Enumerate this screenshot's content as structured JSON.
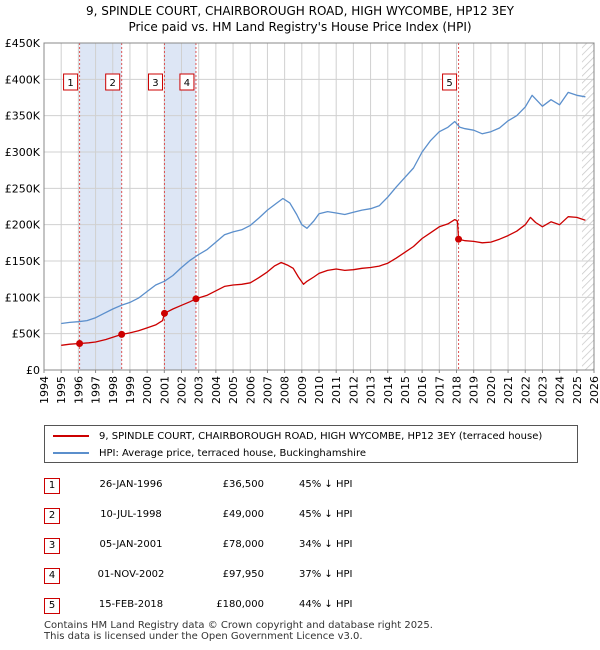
{
  "title_line1": "9, SPINDLE COURT, CHAIRBOROUGH ROAD, HIGH WYCOMBE, HP12 3EY",
  "title_line2": "Price paid vs. HM Land Registry's House Price Index (HPI)",
  "colors": {
    "price_line": "#cc0000",
    "hpi_line": "#5b8fcc",
    "shade": "#dde6f5",
    "grid": "#d0d0d0",
    "vline": "#dd5555"
  },
  "chart_data": {
    "type": "line",
    "title": "9, SPINDLE COURT, CHAIRBOROUGH ROAD, HIGH WYCOMBE, HP12 3EY — Price paid vs. HM Land Registry's House Price Index (HPI)",
    "xlabel": "",
    "ylabel": "",
    "xlim": [
      1994.0,
      2026.0
    ],
    "ylim": [
      0,
      450000
    ],
    "x_ticks": [
      "1994",
      "1995",
      "1996",
      "1997",
      "1998",
      "1999",
      "2000",
      "2001",
      "2002",
      "2003",
      "2004",
      "2005",
      "2006",
      "2007",
      "2008",
      "2009",
      "2010",
      "2011",
      "2012",
      "2013",
      "2014",
      "2015",
      "2016",
      "2017",
      "2018",
      "2019",
      "2020",
      "2021",
      "2022",
      "2023",
      "2024",
      "2025",
      "2026"
    ],
    "y_ticks": [
      {
        "value": 0,
        "label": "£0"
      },
      {
        "value": 50000,
        "label": "£50K"
      },
      {
        "value": 100000,
        "label": "£100K"
      },
      {
        "value": 150000,
        "label": "£150K"
      },
      {
        "value": 200000,
        "label": "£200K"
      },
      {
        "value": 250000,
        "label": "£250K"
      },
      {
        "value": 300000,
        "label": "£300K"
      },
      {
        "value": 350000,
        "label": "£350K"
      },
      {
        "value": 400000,
        "label": "£400K"
      },
      {
        "value": 450000,
        "label": "£450K"
      }
    ],
    "shaded_ranges": [
      [
        1996.07,
        1998.52
      ],
      [
        2001.01,
        2002.84
      ]
    ],
    "future_hatch_from": 2025.3,
    "series": [
      {
        "name": "9, SPINDLE COURT, CHAIRBOROUGH ROAD, HIGH WYCOMBE, HP12 3EY (terraced house)",
        "key": "price",
        "points": [
          [
            1995.0,
            34000
          ],
          [
            1995.5,
            35500
          ],
          [
            1996.07,
            36500
          ],
          [
            1996.6,
            37500
          ],
          [
            1997.0,
            38500
          ],
          [
            1997.6,
            42000
          ],
          [
            1998.0,
            45000
          ],
          [
            1998.52,
            49000
          ],
          [
            1999.0,
            51000
          ],
          [
            1999.5,
            54000
          ],
          [
            2000.0,
            58000
          ],
          [
            2000.5,
            62000
          ],
          [
            2000.9,
            68000
          ],
          [
            2001.01,
            78000
          ],
          [
            2001.5,
            84000
          ],
          [
            2002.0,
            89000
          ],
          [
            2002.5,
            94000
          ],
          [
            2002.84,
            97950
          ],
          [
            2003.5,
            103000
          ],
          [
            2004.0,
            109000
          ],
          [
            2004.5,
            115000
          ],
          [
            2005.0,
            117000
          ],
          [
            2005.5,
            118000
          ],
          [
            2006.0,
            120000
          ],
          [
            2006.5,
            127000
          ],
          [
            2007.0,
            135000
          ],
          [
            2007.4,
            143000
          ],
          [
            2007.8,
            148000
          ],
          [
            2008.2,
            144000
          ],
          [
            2008.5,
            140000
          ],
          [
            2008.8,
            128000
          ],
          [
            2009.1,
            118000
          ],
          [
            2009.3,
            122000
          ],
          [
            2009.7,
            128000
          ],
          [
            2010.0,
            133000
          ],
          [
            2010.5,
            137000
          ],
          [
            2011.0,
            139000
          ],
          [
            2011.5,
            137000
          ],
          [
            2012.0,
            138000
          ],
          [
            2012.5,
            140000
          ],
          [
            2013.0,
            141000
          ],
          [
            2013.5,
            143000
          ],
          [
            2014.0,
            147000
          ],
          [
            2014.5,
            154000
          ],
          [
            2015.0,
            162000
          ],
          [
            2015.5,
            170000
          ],
          [
            2016.0,
            181000
          ],
          [
            2016.5,
            189000
          ],
          [
            2017.0,
            197000
          ],
          [
            2017.5,
            201000
          ],
          [
            2017.9,
            207000
          ],
          [
            2018.05,
            205000
          ],
          [
            2018.12,
            180000
          ],
          [
            2018.5,
            178000
          ],
          [
            2019.0,
            177000
          ],
          [
            2019.5,
            175000
          ],
          [
            2020.0,
            176000
          ],
          [
            2020.5,
            180000
          ],
          [
            2021.0,
            185000
          ],
          [
            2021.5,
            191000
          ],
          [
            2022.0,
            200000
          ],
          [
            2022.3,
            210000
          ],
          [
            2022.6,
            203000
          ],
          [
            2023.0,
            197000
          ],
          [
            2023.5,
            204000
          ],
          [
            2024.0,
            200000
          ],
          [
            2024.5,
            211000
          ],
          [
            2025.0,
            210000
          ],
          [
            2025.5,
            206000
          ]
        ]
      },
      {
        "name": "HPI: Average price, terraced house, Buckinghamshire",
        "key": "hpi",
        "points": [
          [
            1995.0,
            64000
          ],
          [
            1995.5,
            65500
          ],
          [
            1996.0,
            66500
          ],
          [
            1996.5,
            68000
          ],
          [
            1997.0,
            72000
          ],
          [
            1997.5,
            78000
          ],
          [
            1998.0,
            84000
          ],
          [
            1998.5,
            89000
          ],
          [
            1999.0,
            93000
          ],
          [
            1999.5,
            99000
          ],
          [
            2000.0,
            108000
          ],
          [
            2000.5,
            117000
          ],
          [
            2001.0,
            122000
          ],
          [
            2001.5,
            130000
          ],
          [
            2002.0,
            141000
          ],
          [
            2002.5,
            151000
          ],
          [
            2003.0,
            159000
          ],
          [
            2003.5,
            166000
          ],
          [
            2004.0,
            176000
          ],
          [
            2004.5,
            186000
          ],
          [
            2005.0,
            190000
          ],
          [
            2005.5,
            193000
          ],
          [
            2006.0,
            199000
          ],
          [
            2006.5,
            209000
          ],
          [
            2007.0,
            220000
          ],
          [
            2007.5,
            229000
          ],
          [
            2007.9,
            236000
          ],
          [
            2008.3,
            230000
          ],
          [
            2008.7,
            214000
          ],
          [
            2009.0,
            200000
          ],
          [
            2009.3,
            195000
          ],
          [
            2009.7,
            205000
          ],
          [
            2010.0,
            215000
          ],
          [
            2010.5,
            218000
          ],
          [
            2011.0,
            216000
          ],
          [
            2011.5,
            214000
          ],
          [
            2012.0,
            217000
          ],
          [
            2012.5,
            220000
          ],
          [
            2013.0,
            222000
          ],
          [
            2013.5,
            226000
          ],
          [
            2014.0,
            238000
          ],
          [
            2014.5,
            252000
          ],
          [
            2015.0,
            265000
          ],
          [
            2015.5,
            278000
          ],
          [
            2016.0,
            300000
          ],
          [
            2016.5,
            316000
          ],
          [
            2017.0,
            328000
          ],
          [
            2017.5,
            334000
          ],
          [
            2017.9,
            342000
          ],
          [
            2018.2,
            334000
          ],
          [
            2018.5,
            332000
          ],
          [
            2019.0,
            330000
          ],
          [
            2019.5,
            325000
          ],
          [
            2020.0,
            328000
          ],
          [
            2020.5,
            333000
          ],
          [
            2021.0,
            343000
          ],
          [
            2021.5,
            350000
          ],
          [
            2022.0,
            362000
          ],
          [
            2022.4,
            378000
          ],
          [
            2022.8,
            368000
          ],
          [
            2023.0,
            363000
          ],
          [
            2023.5,
            372000
          ],
          [
            2024.0,
            365000
          ],
          [
            2024.5,
            382000
          ],
          [
            2025.0,
            378000
          ],
          [
            2025.5,
            376000
          ]
        ]
      }
    ],
    "sale_points": [
      {
        "num": "1",
        "x": 1996.07,
        "y": 36500
      },
      {
        "num": "2",
        "x": 1998.52,
        "y": 49000
      },
      {
        "num": "3",
        "x": 2001.01,
        "y": 78000
      },
      {
        "num": "4",
        "x": 2002.84,
        "y": 97950
      },
      {
        "num": "5",
        "x": 2018.12,
        "y": 180000
      }
    ]
  },
  "legend": {
    "price_label": "9, SPINDLE COURT, CHAIRBOROUGH ROAD, HIGH WYCOMBE, HP12 3EY (terraced house)",
    "hpi_label": "HPI: Average price, terraced house, Buckinghamshire"
  },
  "transactions": [
    {
      "num": "1",
      "date": "26-JAN-1996",
      "price": "£36,500",
      "hpi": "45% ↓ HPI"
    },
    {
      "num": "2",
      "date": "10-JUL-1998",
      "price": "£49,000",
      "hpi": "45% ↓ HPI"
    },
    {
      "num": "3",
      "date": "05-JAN-2001",
      "price": "£78,000",
      "hpi": "34% ↓ HPI"
    },
    {
      "num": "4",
      "date": "01-NOV-2002",
      "price": "£97,950",
      "hpi": "37% ↓ HPI"
    },
    {
      "num": "5",
      "date": "15-FEB-2018",
      "price": "£180,000",
      "hpi": "44% ↓ HPI"
    }
  ],
  "footer": {
    "line1": "Contains HM Land Registry data © Crown copyright and database right 2025.",
    "line2": "This data is licensed under the Open Government Licence v3.0."
  }
}
